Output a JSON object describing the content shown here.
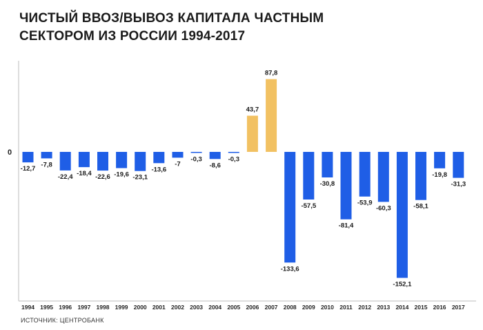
{
  "title_lines": [
    "ЧИСТЫЙ ВВОЗ/ВЫВОЗ КАПИТАЛА ЧАСТНЫМ",
    "СЕКТОРОМ ИЗ РОССИИ 1994-2017"
  ],
  "source": "ИСТОЧНИК: ЦЕНТРОБАНК",
  "chart_data": {
    "type": "bar",
    "title": "ЧИСТЫЙ ВВОЗ/ВЫВОЗ КАПИТАЛА ЧАСТНЫМ СЕКТОРОМ ИЗ РОССИИ 1994-2017",
    "categories": [
      "1994",
      "1995",
      "1996",
      "1997",
      "1998",
      "1999",
      "2000",
      "2001",
      "2002",
      "2003",
      "2004",
      "2005",
      "2006",
      "2007",
      "2008",
      "2009",
      "2010",
      "2011",
      "2012",
      "2013",
      "2014",
      "2015",
      "2016",
      "2017"
    ],
    "values": [
      -12.7,
      -7.8,
      -22.4,
      -18.4,
      -22.6,
      -19.6,
      -23.1,
      -13.6,
      -7,
      -0.3,
      -8.6,
      -0.3,
      43.7,
      87.8,
      -133.6,
      -57.5,
      -30.8,
      -81.4,
      -53.9,
      -60.3,
      -152.1,
      -58.1,
      -19.8,
      -31.3
    ],
    "labels": [
      "-12,7",
      "-7,8",
      "-22,4",
      "-18,4",
      "-22,6",
      "-19,6",
      "-23,1",
      "-13,6",
      "-7",
      "-0,3",
      "-8,6",
      "-0,3",
      "43,7",
      "87,8",
      "-133,6",
      "-57,5",
      "-30,8",
      "-81,4",
      "-53,9",
      "-60,3",
      "-152,1",
      "-58,1",
      "-19,8",
      "-31,3"
    ],
    "zero_label": "0",
    "xlabel": "",
    "ylabel": "",
    "grid": false,
    "colors": {
      "positive": "#f2c162",
      "negative": "#1f5ee6",
      "axis": "#bbbbbb"
    }
  }
}
